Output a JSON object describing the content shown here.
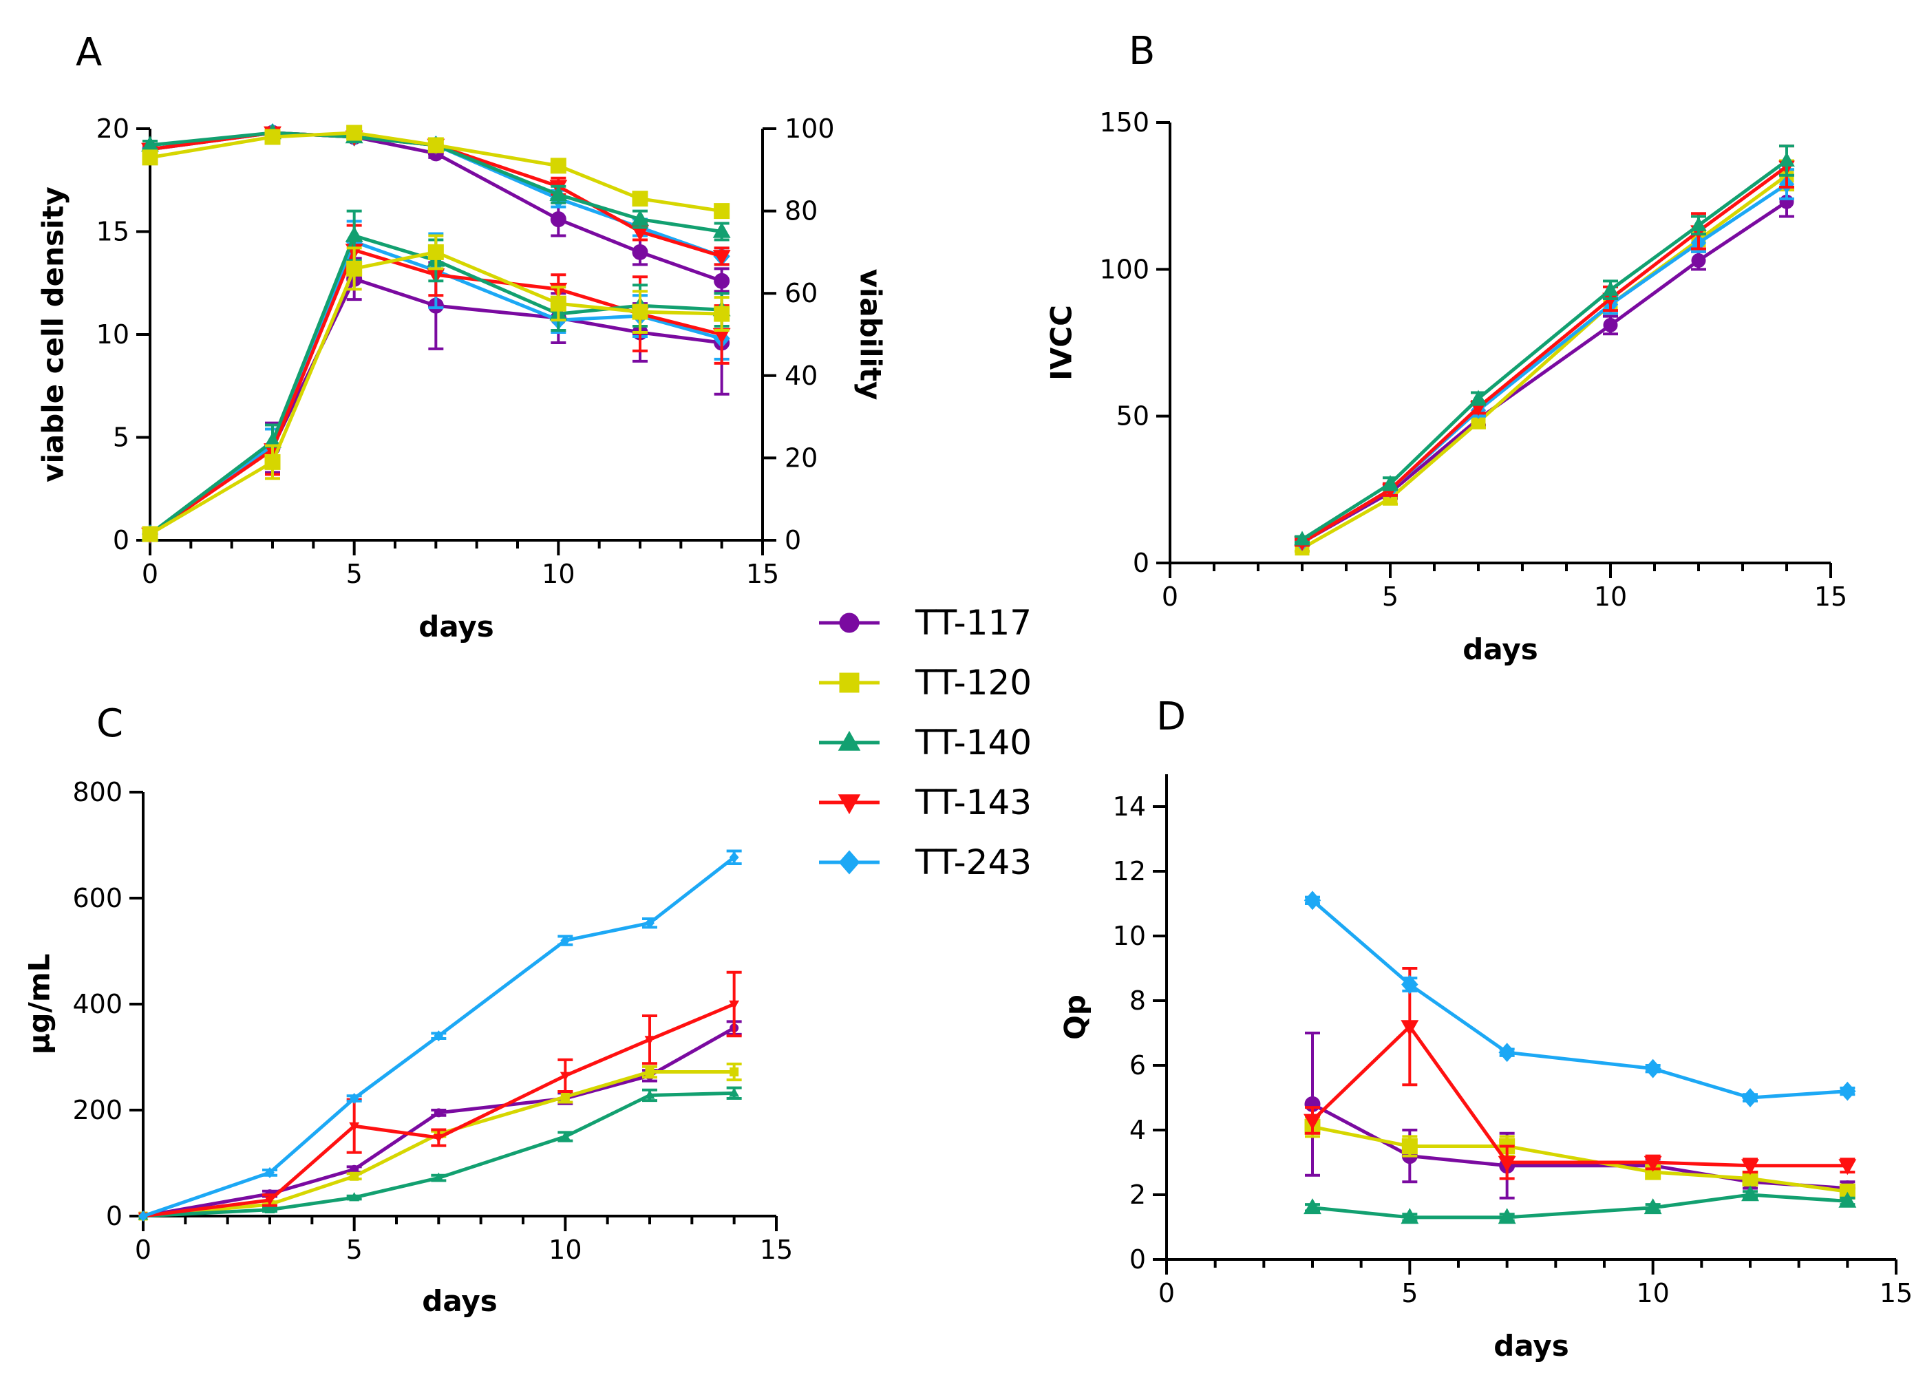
{
  "colors": {
    "TT-117": "#7a0aa0",
    "TT-120": "#d6d600",
    "TT-140": "#12a070",
    "TT-143": "#ff1010",
    "TT-243": "#1ca8f5"
  },
  "legend": {
    "entries": [
      {
        "name": "TT-117",
        "marker": "circle"
      },
      {
        "name": "TT-120",
        "marker": "square"
      },
      {
        "name": "TT-140",
        "marker": "triangle-up"
      },
      {
        "name": "TT-143",
        "marker": "triangle-down"
      },
      {
        "name": "TT-243",
        "marker": "diamond"
      }
    ]
  },
  "chart_data": [
    {
      "id": "A",
      "panel_label": "A",
      "type": "line",
      "xlabel": "days",
      "ylabel": "viable cell density",
      "y2label": "viability",
      "xlim": [
        0,
        15
      ],
      "ylim": [
        0,
        20
      ],
      "y2lim": [
        0,
        100
      ],
      "xticks": [
        "0",
        "5",
        "10",
        "15"
      ],
      "yticks": [
        "0",
        "5",
        "10",
        "15",
        "20"
      ],
      "y2ticks": [
        "0",
        "20",
        "40",
        "60",
        "80",
        "100"
      ],
      "x": [
        0,
        3,
        5,
        7,
        10,
        12,
        14
      ],
      "series": [
        {
          "name": "TT-117",
          "axis": "left",
          "values": [
            0.3,
            4.5,
            12.7,
            11.4,
            10.8,
            10.1,
            9.6
          ],
          "errors": [
            0.1,
            1.2,
            1.0,
            2.1,
            1.2,
            1.4,
            2.5
          ]
        },
        {
          "name": "TT-120",
          "axis": "left",
          "values": [
            0.3,
            3.8,
            13.2,
            14.0,
            11.5,
            11.1,
            11.0
          ],
          "errors": [
            0.1,
            0.8,
            1.0,
            0.8,
            0.8,
            1.0,
            0.8
          ]
        },
        {
          "name": "TT-140",
          "axis": "left",
          "values": [
            0.3,
            4.8,
            14.8,
            13.6,
            11.0,
            11.4,
            11.2
          ],
          "errors": [
            0.1,
            0.8,
            1.2,
            1.0,
            0.8,
            1.0,
            0.8
          ]
        },
        {
          "name": "TT-143",
          "axis": "left",
          "values": [
            0.3,
            4.4,
            14.1,
            12.9,
            12.2,
            11.0,
            10.0
          ],
          "errors": [
            0.1,
            1.2,
            1.2,
            1.0,
            0.7,
            1.8,
            1.4
          ]
        },
        {
          "name": "TT-243",
          "axis": "left",
          "values": [
            0.3,
            4.6,
            14.5,
            13.1,
            10.7,
            10.9,
            9.8
          ],
          "errors": [
            0.1,
            0.8,
            1.0,
            1.8,
            0.6,
            1.0,
            1.0
          ]
        },
        {
          "name": "TT-117",
          "axis": "right",
          "values": [
            95,
            99,
            98,
            94,
            78,
            70,
            63
          ],
          "errors": [
            1,
            0.5,
            0.5,
            1,
            4,
            3,
            3
          ]
        },
        {
          "name": "TT-120",
          "axis": "right",
          "values": [
            93,
            98,
            99,
            96,
            91,
            83,
            80
          ],
          "errors": [
            1,
            0.5,
            0.5,
            1,
            1,
            1,
            1
          ]
        },
        {
          "name": "TT-140",
          "axis": "right",
          "values": [
            96,
            99,
            98,
            96,
            84,
            78,
            75
          ],
          "errors": [
            1,
            0.5,
            0.5,
            1,
            2,
            2,
            2
          ]
        },
        {
          "name": "TT-143",
          "axis": "right",
          "values": [
            95,
            99,
            98,
            96,
            86,
            75,
            69
          ],
          "errors": [
            1,
            0.5,
            0.5,
            1,
            2,
            2,
            2
          ]
        },
        {
          "name": "TT-243",
          "axis": "right",
          "values": [
            95,
            99,
            98,
            96,
            83,
            76,
            69
          ],
          "errors": [
            1,
            0.5,
            0.5,
            1,
            2,
            2,
            2
          ]
        }
      ]
    },
    {
      "id": "B",
      "panel_label": "B",
      "type": "line",
      "xlabel": "days",
      "ylabel": "IVCC",
      "xlim": [
        0,
        15
      ],
      "ylim": [
        0,
        150
      ],
      "xticks": [
        "0",
        "5",
        "10",
        "15"
      ],
      "yticks": [
        "0",
        "50",
        "100",
        "150"
      ],
      "x": [
        3,
        5,
        7,
        10,
        12,
        14
      ],
      "series": [
        {
          "name": "TT-117",
          "values": [
            7,
            24,
            49,
            81,
            103,
            123
          ],
          "errors": [
            1,
            2,
            2,
            3,
            3,
            5
          ]
        },
        {
          "name": "TT-120",
          "values": [
            5,
            22,
            48,
            88,
            110,
            132
          ],
          "errors": [
            1,
            2,
            2,
            3,
            3,
            5
          ]
        },
        {
          "name": "TT-140",
          "values": [
            8,
            27,
            56,
            93,
            115,
            137
          ],
          "errors": [
            1,
            2,
            2,
            3,
            3,
            5
          ]
        },
        {
          "name": "TT-143",
          "values": [
            7,
            25,
            53,
            90,
            113,
            135
          ],
          "errors": [
            1,
            2,
            2,
            4,
            6,
            7
          ]
        },
        {
          "name": "TT-243",
          "values": [
            7,
            25,
            52,
            88,
            109,
            129
          ],
          "errors": [
            1,
            2,
            2,
            3,
            3,
            5
          ]
        }
      ]
    },
    {
      "id": "C",
      "panel_label": "C",
      "type": "line",
      "xlabel": "days",
      "ylabel": "µg/mL",
      "xlim": [
        0,
        15
      ],
      "ylim": [
        0,
        800
      ],
      "xticks": [
        "0",
        "5",
        "10",
        "15"
      ],
      "yticks": [
        "0",
        "200",
        "400",
        "600",
        "800"
      ],
      "x": [
        0,
        3,
        5,
        7,
        10,
        12,
        14
      ],
      "series": [
        {
          "name": "TT-117",
          "values": [
            0,
            42,
            88,
            195,
            222,
            265,
            355
          ],
          "errors": [
            0,
            5,
            5,
            5,
            10,
            10,
            12
          ]
        },
        {
          "name": "TT-120",
          "values": [
            0,
            22,
            75,
            155,
            225,
            272,
            272
          ],
          "errors": [
            0,
            5,
            5,
            5,
            10,
            10,
            15
          ]
        },
        {
          "name": "TT-140",
          "values": [
            0,
            12,
            35,
            72,
            150,
            228,
            232
          ],
          "errors": [
            0,
            3,
            3,
            5,
            8,
            10,
            10
          ]
        },
        {
          "name": "TT-143",
          "values": [
            0,
            30,
            170,
            148,
            265,
            333,
            400
          ],
          "errors": [
            0,
            10,
            50,
            15,
            30,
            45,
            60
          ]
        },
        {
          "name": "TT-243",
          "values": [
            0,
            82,
            222,
            340,
            520,
            553,
            677
          ],
          "errors": [
            0,
            5,
            5,
            5,
            8,
            8,
            12
          ]
        }
      ]
    },
    {
      "id": "D",
      "panel_label": "D",
      "type": "line",
      "xlabel": "days",
      "ylabel": "Qp",
      "xlim": [
        0,
        15
      ],
      "ylim": [
        0,
        15
      ],
      "xticks": [
        "0",
        "5",
        "10",
        "15"
      ],
      "yticks": [
        "0",
        "2",
        "4",
        "6",
        "8",
        "10",
        "12",
        "14"
      ],
      "x": [
        3,
        5,
        7,
        10,
        12,
        14
      ],
      "series": [
        {
          "name": "TT-117",
          "values": [
            4.8,
            3.2,
            2.9,
            2.9,
            2.4,
            2.2
          ],
          "errors": [
            2.2,
            0.8,
            1.0,
            0.2,
            0.2,
            0.2
          ]
        },
        {
          "name": "TT-120",
          "values": [
            4.1,
            3.5,
            3.5,
            2.7,
            2.5,
            2.1
          ],
          "errors": [
            0.3,
            0.3,
            0.3,
            0.2,
            0.2,
            0.2
          ]
        },
        {
          "name": "TT-140",
          "values": [
            1.6,
            1.3,
            1.3,
            1.6,
            2.0,
            1.8
          ],
          "errors": [
            0.1,
            0.1,
            0.1,
            0.1,
            0.1,
            0.1
          ]
        },
        {
          "name": "TT-143",
          "values": [
            4.3,
            7.2,
            3.0,
            3.0,
            2.9,
            2.9
          ],
          "errors": [
            0.4,
            1.8,
            0.5,
            0.2,
            0.2,
            0.2
          ]
        },
        {
          "name": "TT-243",
          "values": [
            11.1,
            8.5,
            6.4,
            5.9,
            5.0,
            5.2
          ],
          "errors": [
            0.1,
            0.2,
            0.1,
            0.1,
            0.1,
            0.1
          ]
        }
      ]
    }
  ]
}
